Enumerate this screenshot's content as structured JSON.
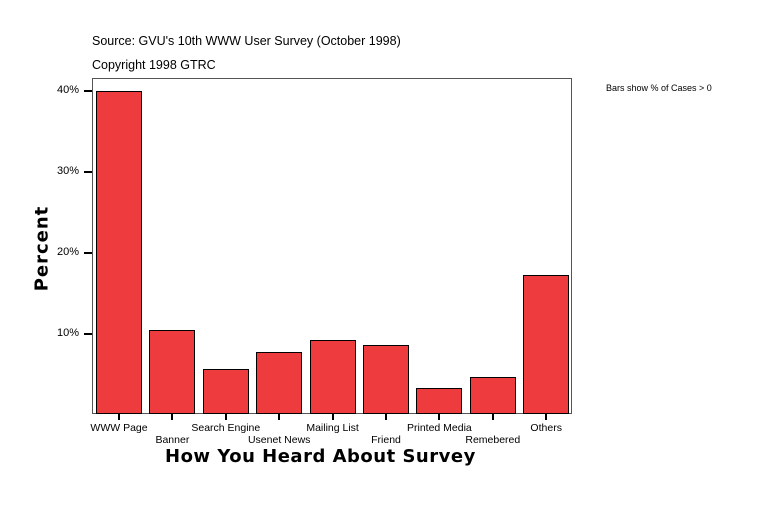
{
  "header": {
    "source": "Source: GVU's 10th WWW User Survey (October 1998)",
    "copyright": "Copyright 1998 GTRC",
    "note": "Bars show % of Cases > 0"
  },
  "chart_data": {
    "type": "bar",
    "title": "Source: GVU's 10th WWW User Survey (October 1998)",
    "subtitle": "Copyright 1998 GTRC",
    "annotation": "Bars show % of Cases > 0",
    "xlabel": "How You Heard About Survey",
    "ylabel": "Percent",
    "categories": [
      "WWW Page",
      "Banner",
      "Search Engine",
      "Usenet News",
      "Mailing List",
      "Friend",
      "Printed Media",
      "Remebered",
      "Others"
    ],
    "values": [
      40.0,
      10.5,
      5.7,
      7.8,
      9.2,
      8.7,
      3.3,
      4.7,
      17.3
    ],
    "yticks": [
      "10%",
      "20%",
      "30%",
      "40%"
    ],
    "ylim": [
      0,
      41.5
    ],
    "grid": false,
    "bar_color": "#ee3b3d"
  }
}
